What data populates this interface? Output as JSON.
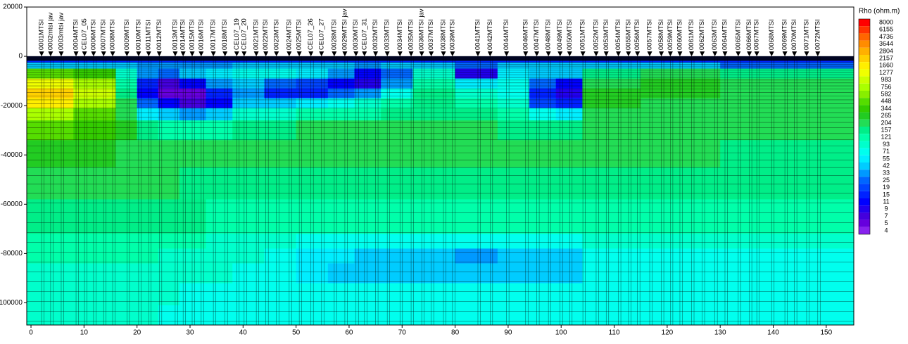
{
  "chart_data": {
    "type": "heatmap",
    "xlim": [
      -0.8,
      155.2
    ],
    "ylim": [
      -109000,
      20000
    ],
    "xticks": [
      0,
      10,
      20,
      30,
      40,
      50,
      60,
      70,
      80,
      90,
      100,
      110,
      120,
      130,
      140,
      150
    ],
    "yticks": [
      20000,
      0,
      -20000,
      -40000,
      -60000,
      -80000,
      -100000
    ],
    "x_bins": [
      -0.8,
      8,
      16,
      20,
      24,
      28,
      33,
      38,
      44,
      50,
      56,
      61,
      66,
      72,
      80,
      88,
      94,
      99,
      104,
      115,
      130,
      155.2
    ],
    "y_bins": [
      0,
      -2500,
      -5000,
      -9000,
      -13000,
      -17000,
      -21000,
      -26000,
      -34000,
      -45000,
      -58000,
      -72000,
      -78000,
      -84000,
      -92000,
      -101000,
      -109000
    ],
    "values": [
      [
        15,
        15,
        15,
        15,
        15,
        15,
        15,
        15,
        15,
        15,
        15,
        15,
        15,
        15,
        15,
        15,
        15,
        15,
        15,
        15,
        15
      ],
      [
        42,
        42,
        42,
        33,
        33,
        33,
        33,
        42,
        42,
        42,
        42,
        33,
        42,
        42,
        25,
        42,
        42,
        42,
        42,
        42,
        25
      ],
      [
        448,
        344,
        93,
        33,
        25,
        42,
        55,
        71,
        71,
        55,
        33,
        11,
        25,
        93,
        9,
        55,
        42,
        42,
        157,
        204,
        157
      ],
      [
        1277,
        756,
        121,
        15,
        7,
        11,
        33,
        42,
        25,
        19,
        11,
        9,
        33,
        121,
        55,
        71,
        25,
        11,
        204,
        265,
        204
      ],
      [
        2157,
        983,
        157,
        11,
        5,
        5,
        15,
        33,
        15,
        15,
        25,
        33,
        71,
        157,
        93,
        71,
        15,
        9,
        265,
        265,
        204
      ],
      [
        1660,
        756,
        204,
        25,
        11,
        7,
        11,
        42,
        42,
        55,
        71,
        93,
        121,
        157,
        121,
        93,
        19,
        15,
        265,
        204,
        204
      ],
      [
        756,
        448,
        204,
        55,
        42,
        33,
        42,
        93,
        93,
        121,
        121,
        121,
        157,
        157,
        157,
        121,
        71,
        55,
        204,
        204,
        204
      ],
      [
        448,
        344,
        265,
        157,
        121,
        121,
        121,
        157,
        157,
        204,
        204,
        204,
        204,
        204,
        204,
        157,
        157,
        157,
        204,
        204,
        204
      ],
      [
        265,
        265,
        204,
        204,
        204,
        204,
        204,
        204,
        204,
        204,
        204,
        204,
        204,
        204,
        204,
        204,
        204,
        204,
        204,
        204,
        157
      ],
      [
        204,
        204,
        204,
        204,
        204,
        157,
        157,
        157,
        157,
        157,
        157,
        157,
        157,
        157,
        157,
        157,
        157,
        157,
        157,
        157,
        157
      ],
      [
        157,
        157,
        157,
        157,
        157,
        157,
        121,
        121,
        121,
        121,
        121,
        121,
        121,
        121,
        121,
        121,
        121,
        121,
        121,
        121,
        121
      ],
      [
        121,
        121,
        121,
        121,
        121,
        121,
        93,
        93,
        93,
        71,
        71,
        71,
        71,
        71,
        71,
        71,
        71,
        71,
        93,
        93,
        93
      ],
      [
        121,
        121,
        121,
        121,
        93,
        93,
        93,
        93,
        71,
        55,
        55,
        42,
        42,
        42,
        33,
        42,
        42,
        42,
        71,
        71,
        71
      ],
      [
        93,
        93,
        93,
        93,
        93,
        93,
        93,
        71,
        71,
        55,
        42,
        42,
        42,
        42,
        42,
        42,
        42,
        42,
        71,
        71,
        71
      ],
      [
        93,
        93,
        93,
        93,
        93,
        71,
        71,
        71,
        71,
        71,
        71,
        71,
        71,
        71,
        71,
        71,
        71,
        71,
        71,
        71,
        71
      ],
      [
        93,
        93,
        93,
        93,
        71,
        71,
        71,
        71,
        71,
        71,
        71,
        71,
        71,
        71,
        71,
        71,
        71,
        71,
        71,
        71,
        71
      ]
    ],
    "stations": {
      "names": [
        "0001MTSI",
        "0002mtsi jav",
        "0003mtsi jav",
        "0004MTSI",
        "CEL07_05",
        "0006MTSI",
        "0007MTSI",
        "0008MTSI",
        "0009MTSI",
        "0010MTSI",
        "0011MTSI",
        "0012MTSI",
        "0013MTSI",
        "0014MTSI",
        "0015MTSI",
        "0016MTSI",
        "0017MTSI",
        "0018MTSI",
        "CEL07_19",
        "CEL07_20",
        "0021MTSI",
        "0022MTSI",
        "0023MTSI",
        "0024MTSI",
        "0025MTSI",
        "CEL07_26",
        "CEL07_27",
        "0028MTSI",
        "0029MTSI jav",
        "0030MTSI",
        "CEL07_31",
        "0032MTSI",
        "0033MTSI",
        "0034MTSI",
        "0035MTSI",
        "0036MTSI jav",
        "0037MTSI",
        "0038MTSI",
        "0039MTSI",
        "0041MTSI",
        "0042MTSI",
        "0044MTSI",
        "0046MTSI",
        "0047MTSI",
        "0048MTSI",
        "0049MTSI",
        "0050MTSI",
        "0051MTSI",
        "0052MTSI",
        "0053MTSI",
        "0054MTSI",
        "0055MTSI",
        "0056MTSI",
        "0057MTSI",
        "0058MTSI",
        "0059MTSI",
        "0060MTSI",
        "0061MTSI",
        "0062MTSI",
        "0063MTSI",
        "0064MTSI",
        "0065MTSI",
        "0066MTSI",
        "0067MTSI",
        "0068MTSI",
        "0069MTSI",
        "0070MTSI",
        "0071MTSI",
        "0072MTSI"
      ],
      "x": [
        2.0,
        3.7,
        5.7,
        8.5,
        10.1,
        11.8,
        13.7,
        15.4,
        18.1,
        20.3,
        22.2,
        24.2,
        27.2,
        28.7,
        30.4,
        32.1,
        34.4,
        36.6,
        38.8,
        40.2,
        42.5,
        44.3,
        46.3,
        48.7,
        50.6,
        52.8,
        54.8,
        57.2,
        59.2,
        61.3,
        62.9,
        65.0,
        67.2,
        69.6,
        71.7,
        73.7,
        75.5,
        77.8,
        79.5,
        84.3,
        86.6,
        89.7,
        93.3,
        95.4,
        97.6,
        99.8,
        101.6,
        104.1,
        106.6,
        108.5,
        110.8,
        112.7,
        114.4,
        116.7,
        118.9,
        120.6,
        122.4,
        124.6,
        126.6,
        129.0,
        130.9,
        133.4,
        135.5,
        136.9,
        139.7,
        142.2,
        144.0,
        146.3,
        148.4
      ]
    },
    "colorbar": {
      "title": "Rho (ohm.m)",
      "levels": [
        8000,
        6155,
        4736,
        3644,
        2804,
        2157,
        1660,
        1277,
        983,
        756,
        582,
        448,
        344,
        265,
        204,
        157,
        121,
        93,
        71,
        55,
        42,
        33,
        25,
        19,
        15,
        11,
        9,
        7,
        5,
        4
      ],
      "colors": [
        "#ff0000",
        "#ff3300",
        "#ff6600",
        "#ff8c00",
        "#ffb000",
        "#ffd000",
        "#ffee00",
        "#f0ff00",
        "#ccff00",
        "#aaff00",
        "#88ee00",
        "#55dd00",
        "#33cc00",
        "#22cc22",
        "#22dd55",
        "#00ee88",
        "#00ffaa",
        "#00ffcc",
        "#00ffee",
        "#00eeff",
        "#00ccff",
        "#0099ff",
        "#0066ff",
        "#0044ff",
        "#0022ff",
        "#0000ff",
        "#2200ee",
        "#4400dd",
        "#6600dd",
        "#8822ee"
      ]
    }
  }
}
